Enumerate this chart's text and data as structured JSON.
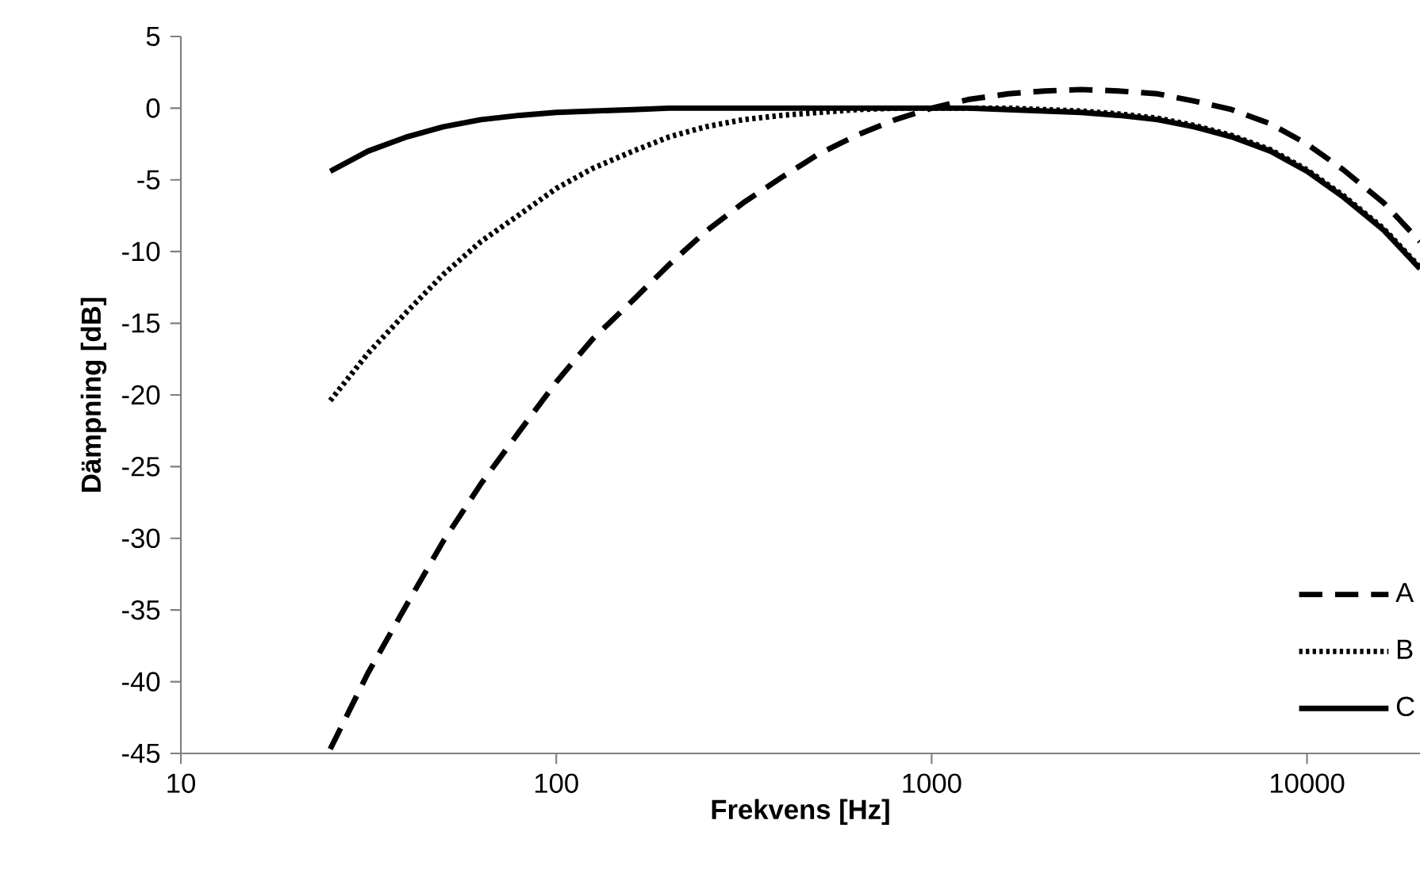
{
  "chart_data": {
    "type": "line",
    "xlabel": "Frekvens [Hz]",
    "ylabel": "Dämpning [dB]",
    "log": "x",
    "xlim": [
      10,
      20000
    ],
    "ylim": [
      -45,
      5
    ],
    "xticks": [
      10,
      100,
      1000,
      10000
    ],
    "yticks": [
      -45,
      -40,
      -35,
      -30,
      -25,
      -20,
      -15,
      -10,
      -5,
      0,
      5
    ],
    "grid": false,
    "legend": "bottom right",
    "marker": "none",
    "x": [
      25,
      31.5,
      40,
      50,
      63,
      80,
      100,
      125,
      160,
      200,
      250,
      315,
      400,
      500,
      630,
      800,
      1000,
      1250,
      1600,
      2000,
      2500,
      3150,
      4000,
      5000,
      6300,
      8000,
      10000,
      12500,
      16000,
      20000
    ],
    "series": [
      {
        "name": "A",
        "color": "#000000",
        "line_style": "dashed",
        "values": [
          -44.7,
          -39.4,
          -34.6,
          -30.2,
          -26.2,
          -22.5,
          -19.1,
          -16.1,
          -13.4,
          -10.9,
          -8.6,
          -6.6,
          -4.8,
          -3.2,
          -1.9,
          -0.8,
          0,
          0.6,
          1.0,
          1.2,
          1.3,
          1.2,
          1.0,
          0.5,
          -0.1,
          -1.1,
          -2.5,
          -4.3,
          -6.6,
          -9.3
        ]
      },
      {
        "name": "B",
        "color": "#000000",
        "line_style": "dotted",
        "values": [
          -20.4,
          -17.1,
          -14.2,
          -11.6,
          -9.3,
          -7.4,
          -5.6,
          -4.2,
          -3.0,
          -2.0,
          -1.3,
          -0.8,
          -0.5,
          -0.3,
          -0.1,
          0,
          0,
          0,
          0,
          -0.1,
          -0.2,
          -0.4,
          -0.7,
          -1.2,
          -1.9,
          -2.9,
          -4.3,
          -6.1,
          -8.4,
          -11.1
        ]
      },
      {
        "name": "C",
        "color": "#000000",
        "line_style": "solid",
        "values": [
          -4.4,
          -3.0,
          -2.0,
          -1.3,
          -0.8,
          -0.5,
          -0.3,
          -0.2,
          -0.1,
          0,
          0,
          0,
          0,
          0,
          0,
          0,
          0,
          0,
          -0.1,
          -0.2,
          -0.3,
          -0.5,
          -0.8,
          -1.3,
          -2.0,
          -3.0,
          -4.4,
          -6.2,
          -8.5,
          -11.2
        ]
      }
    ]
  }
}
